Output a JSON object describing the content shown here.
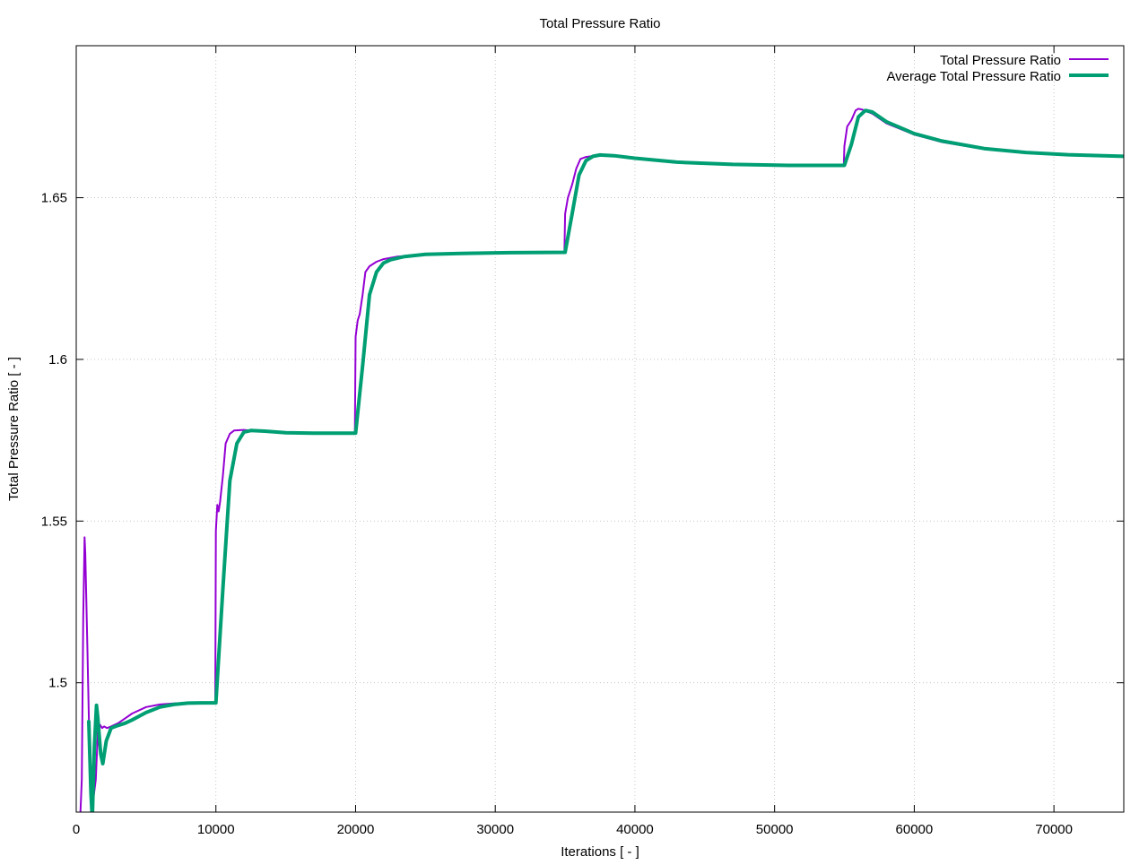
{
  "chart_data": {
    "type": "line",
    "title": "Total Pressure Ratio",
    "xlabel": "Iterations [ - ]",
    "ylabel": "Total Pressure Ratio [ - ]",
    "xlim": [
      0,
      75000
    ],
    "ylim": [
      1.46,
      1.697
    ],
    "xticks": [
      0,
      10000,
      20000,
      30000,
      40000,
      50000,
      60000,
      70000
    ],
    "xtick_labels": [
      "0",
      "10000",
      "20000",
      "30000",
      "40000",
      "50000",
      "60000",
      "70000"
    ],
    "yticks": [
      1.5,
      1.55,
      1.6,
      1.65
    ],
    "ytick_labels": [
      "1.5",
      "1.55",
      "1.6",
      "1.65"
    ],
    "grid": true,
    "legend_position": "top-right",
    "series": [
      {
        "name": "Total Pressure Ratio",
        "color": "#9400d3",
        "width": 2,
        "points": [
          [
            0,
            1.44
          ],
          [
            300,
            1.46
          ],
          [
            400,
            1.47
          ],
          [
            500,
            1.52
          ],
          [
            600,
            1.545
          ],
          [
            650,
            1.54
          ],
          [
            700,
            1.53
          ],
          [
            750,
            1.52
          ],
          [
            800,
            1.51
          ],
          [
            900,
            1.49
          ],
          [
            1000,
            1.47
          ],
          [
            1100,
            1.458
          ],
          [
            1250,
            1.465
          ],
          [
            1400,
            1.47
          ],
          [
            1550,
            1.485
          ],
          [
            1700,
            1.487
          ],
          [
            1850,
            1.486
          ],
          [
            2000,
            1.4865
          ],
          [
            2200,
            1.486
          ],
          [
            2500,
            1.4865
          ],
          [
            3000,
            1.4875
          ],
          [
            3500,
            1.489
          ],
          [
            4000,
            1.4905
          ],
          [
            5000,
            1.4925
          ],
          [
            6000,
            1.4933
          ],
          [
            7000,
            1.4936
          ],
          [
            8000,
            1.4938
          ],
          [
            9000,
            1.4938
          ],
          [
            9950,
            1.4938
          ],
          [
            10000,
            1.547
          ],
          [
            10100,
            1.555
          ],
          [
            10200,
            1.553
          ],
          [
            10300,
            1.556
          ],
          [
            10500,
            1.564
          ],
          [
            10700,
            1.574
          ],
          [
            11000,
            1.577
          ],
          [
            11300,
            1.578
          ],
          [
            12000,
            1.5782
          ],
          [
            13000,
            1.5778
          ],
          [
            15000,
            1.5773
          ],
          [
            17000,
            1.5772
          ],
          [
            19950,
            1.5772
          ],
          [
            20000,
            1.607
          ],
          [
            20150,
            1.612
          ],
          [
            20300,
            1.614
          ],
          [
            20500,
            1.62
          ],
          [
            20700,
            1.627
          ],
          [
            21000,
            1.6288
          ],
          [
            21500,
            1.6302
          ],
          [
            22000,
            1.631
          ],
          [
            23000,
            1.6318
          ],
          [
            25000,
            1.6325
          ],
          [
            28000,
            1.6328
          ],
          [
            31000,
            1.633
          ],
          [
            34950,
            1.6331
          ],
          [
            35000,
            1.645
          ],
          [
            35200,
            1.65
          ],
          [
            35500,
            1.654
          ],
          [
            35800,
            1.659
          ],
          [
            36100,
            1.662
          ],
          [
            36500,
            1.6626
          ],
          [
            37500,
            1.6632
          ],
          [
            38500,
            1.663
          ],
          [
            40000,
            1.6622
          ],
          [
            43000,
            1.661
          ],
          [
            47000,
            1.6603
          ],
          [
            51000,
            1.66
          ],
          [
            54950,
            1.66
          ],
          [
            55000,
            1.666
          ],
          [
            55200,
            1.672
          ],
          [
            55500,
            1.674
          ],
          [
            55800,
            1.677
          ],
          [
            56000,
            1.6775
          ],
          [
            56300,
            1.6772
          ],
          [
            57000,
            1.676
          ],
          [
            58000,
            1.673
          ],
          [
            60000,
            1.6695
          ],
          [
            62000,
            1.6672
          ],
          [
            65000,
            1.665
          ],
          [
            68000,
            1.6638
          ],
          [
            71000,
            1.6632
          ],
          [
            75000,
            1.6628
          ]
        ]
      },
      {
        "name": "Average Total Pressure Ratio",
        "color": "#009e73",
        "width": 4,
        "points": [
          [
            900,
            1.488
          ],
          [
            1050,
            1.466
          ],
          [
            1150,
            1.458
          ],
          [
            1300,
            1.48
          ],
          [
            1450,
            1.493
          ],
          [
            1550,
            1.489
          ],
          [
            1750,
            1.478
          ],
          [
            1900,
            1.475
          ],
          [
            2150,
            1.482
          ],
          [
            2500,
            1.486
          ],
          [
            3000,
            1.4868
          ],
          [
            3500,
            1.4875
          ],
          [
            4000,
            1.4885
          ],
          [
            5000,
            1.4908
          ],
          [
            6000,
            1.4925
          ],
          [
            7000,
            1.4933
          ],
          [
            8000,
            1.4937
          ],
          [
            9000,
            1.4938
          ],
          [
            10000,
            1.4938
          ],
          [
            10500,
            1.529
          ],
          [
            11000,
            1.5625
          ],
          [
            11500,
            1.574
          ],
          [
            12000,
            1.5775
          ],
          [
            12500,
            1.578
          ],
          [
            13500,
            1.5778
          ],
          [
            15000,
            1.5773
          ],
          [
            17000,
            1.5772
          ],
          [
            20000,
            1.5772
          ],
          [
            20500,
            1.598
          ],
          [
            21000,
            1.62
          ],
          [
            21500,
            1.627
          ],
          [
            22000,
            1.6298
          ],
          [
            22500,
            1.6308
          ],
          [
            23500,
            1.6318
          ],
          [
            25000,
            1.6325
          ],
          [
            28000,
            1.6328
          ],
          [
            31000,
            1.633
          ],
          [
            35000,
            1.6331
          ],
          [
            35500,
            1.645
          ],
          [
            36000,
            1.657
          ],
          [
            36500,
            1.6615
          ],
          [
            37000,
            1.6628
          ],
          [
            37500,
            1.6632
          ],
          [
            38500,
            1.663
          ],
          [
            40000,
            1.6622
          ],
          [
            43000,
            1.661
          ],
          [
            47000,
            1.6603
          ],
          [
            51000,
            1.66
          ],
          [
            55000,
            1.66
          ],
          [
            55500,
            1.6665
          ],
          [
            56000,
            1.675
          ],
          [
            56500,
            1.677
          ],
          [
            57000,
            1.6765
          ],
          [
            58000,
            1.6735
          ],
          [
            60000,
            1.6698
          ],
          [
            62000,
            1.6675
          ],
          [
            65000,
            1.6652
          ],
          [
            68000,
            1.664
          ],
          [
            71000,
            1.6633
          ],
          [
            75000,
            1.6628
          ]
        ]
      }
    ]
  }
}
